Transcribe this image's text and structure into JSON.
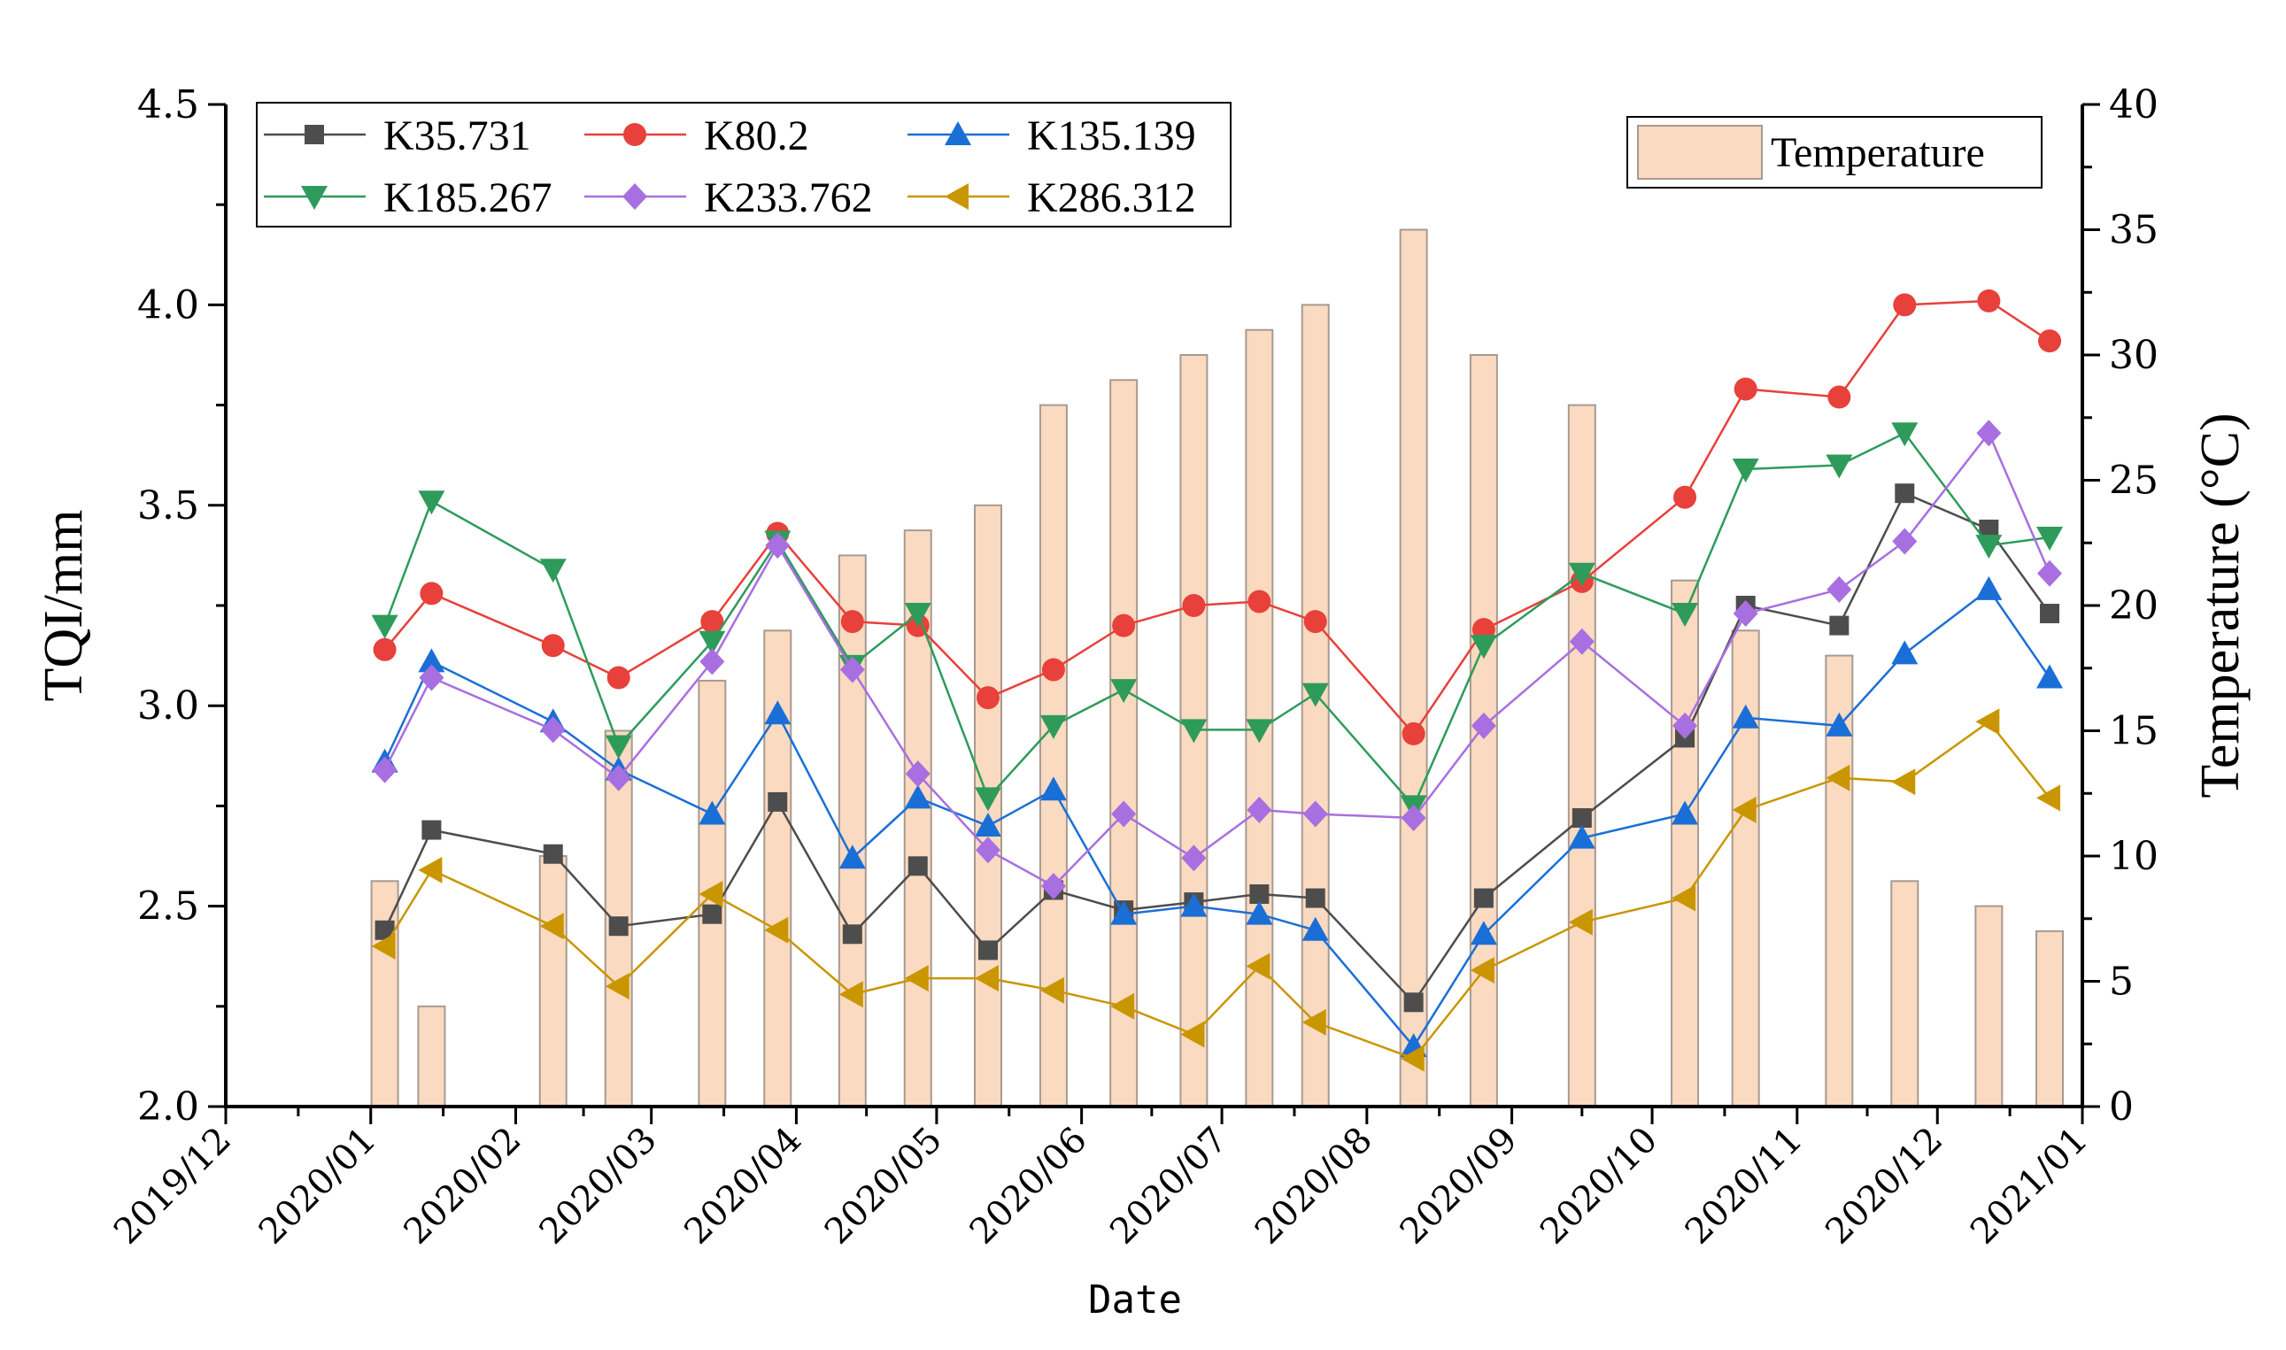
{
  "chart_data": {
    "type": "line",
    "xlabel": "Date",
    "ylabel": "TQI/mm",
    "y2label": "Temperature (°C)",
    "ylim": [
      2.0,
      4.5
    ],
    "y2lim": [
      0,
      40
    ],
    "yticks": [
      "2.0",
      "2.5",
      "3.0",
      "3.5",
      "4.0",
      "4.5"
    ],
    "y2ticks": [
      "0",
      "5",
      "10",
      "15",
      "20",
      "25",
      "30",
      "35",
      "40"
    ],
    "xticks": [
      "2019/12",
      "2020/01",
      "2020/02",
      "2020/03",
      "2020/04",
      "2020/05",
      "2020/06",
      "2020/07",
      "2020/08",
      "2020/09",
      "2020/10",
      "2020/11",
      "2020/12",
      "2021/01"
    ],
    "grid": false,
    "legend_position": "top-left",
    "dates": [
      "2020/01/04",
      "2020/01/14",
      "2020/02/09",
      "2020/02/23",
      "2020/03/14",
      "2020/03/28",
      "2020/04/13",
      "2020/04/27",
      "2020/05/12",
      "2020/05/26",
      "2020/06/10",
      "2020/06/25",
      "2020/07/09",
      "2020/07/21",
      "2020/08/11",
      "2020/08/26",
      "2020/09/16",
      "2020/10/08",
      "2020/10/21",
      "2020/11/10",
      "2020/11/24",
      "2020/12/12",
      "2020/12/25"
    ],
    "series": [
      {
        "name": "K35.731",
        "color": "#4d4d4d",
        "marker": "square",
        "values": [
          2.44,
          2.69,
          2.63,
          2.45,
          2.48,
          2.76,
          2.43,
          2.6,
          2.39,
          2.54,
          2.49,
          2.51,
          2.53,
          2.52,
          2.26,
          2.52,
          2.72,
          2.92,
          3.25,
          3.2,
          3.53,
          3.44,
          3.23
        ]
      },
      {
        "name": "K80.2",
        "color": "#e8403a",
        "marker": "circle",
        "values": [
          3.14,
          3.28,
          3.15,
          3.07,
          3.21,
          3.43,
          3.21,
          3.2,
          3.02,
          3.09,
          3.2,
          3.25,
          3.26,
          3.21,
          2.93,
          3.19,
          3.31,
          3.52,
          3.79,
          3.77,
          4.0,
          4.01,
          3.91
        ]
      },
      {
        "name": "K135.139",
        "color": "#1a6fd6",
        "marker": "triangle-up",
        "values": [
          2.86,
          3.11,
          2.96,
          2.84,
          2.73,
          2.98,
          2.62,
          2.77,
          2.7,
          2.79,
          2.48,
          2.5,
          2.48,
          2.44,
          2.15,
          2.43,
          2.67,
          2.73,
          2.97,
          2.95,
          3.13,
          3.29,
          3.07
        ]
      },
      {
        "name": "K185.267",
        "color": "#2e9b5b",
        "marker": "triangle-down",
        "values": [
          3.2,
          3.51,
          3.34,
          2.9,
          3.16,
          3.41,
          3.1,
          3.23,
          2.77,
          2.95,
          3.04,
          2.94,
          2.94,
          3.03,
          2.75,
          3.15,
          3.33,
          3.23,
          3.59,
          3.6,
          3.68,
          3.4,
          3.42
        ]
      },
      {
        "name": "K233.762",
        "color": "#a86fe0",
        "marker": "diamond",
        "values": [
          2.84,
          3.07,
          2.94,
          2.82,
          3.11,
          3.4,
          3.09,
          2.83,
          2.64,
          2.55,
          2.73,
          2.62,
          2.74,
          2.73,
          2.72,
          2.95,
          3.16,
          2.95,
          3.23,
          3.29,
          3.41,
          3.68,
          3.33
        ]
      },
      {
        "name": "K286.312",
        "color": "#c99600",
        "marker": "triangle-left",
        "values": [
          2.4,
          2.59,
          2.45,
          2.3,
          2.53,
          2.44,
          2.28,
          2.32,
          2.32,
          2.29,
          2.25,
          2.18,
          2.35,
          2.21,
          2.12,
          2.34,
          2.46,
          2.52,
          2.74,
          2.82,
          2.81,
          2.96,
          2.77
        ]
      }
    ],
    "temperature": {
      "name": "Temperature",
      "color": "#f9d3b6",
      "values": [
        9,
        4,
        10,
        15,
        17,
        19,
        22,
        23,
        24,
        28,
        29,
        30,
        31,
        32,
        35,
        30,
        28,
        21,
        19,
        18,
        9,
        8,
        7
      ]
    }
  }
}
